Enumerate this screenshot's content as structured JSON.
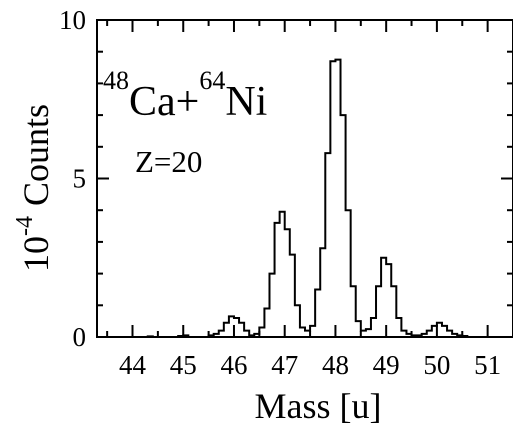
{
  "chart_data": {
    "type": "line",
    "step": true,
    "title": "",
    "xlabel": "Mass [u]",
    "ylabel": "Counts",
    "ylabel_exponent_base": "10",
    "ylabel_exponent": "-4",
    "xlim": [
      43.3,
      51.5
    ],
    "ylim": [
      0,
      10
    ],
    "x_ticks": [
      44,
      45,
      46,
      47,
      48,
      49,
      50,
      51
    ],
    "x_tick_labels": [
      "44",
      "45",
      "46",
      "47",
      "48",
      "49",
      "50",
      "51"
    ],
    "y_ticks": [
      0,
      5,
      10
    ],
    "y_tick_labels": [
      "0",
      "5",
      "10"
    ],
    "grid": false,
    "annotations": {
      "reaction": {
        "target_mass": "48",
        "target": "Ca+",
        "projectile_mass": "64",
        "projectile": "Ni"
      },
      "z_label": "Z=20"
    },
    "series": [
      {
        "bin_width": 0.1,
        "x": [
          43.35,
          43.45,
          43.55,
          43.65,
          43.75,
          43.85,
          43.95,
          44.05,
          44.15,
          44.25,
          44.35,
          44.45,
          44.55,
          44.65,
          44.75,
          44.85,
          44.95,
          45.05,
          45.15,
          45.25,
          45.35,
          45.45,
          45.55,
          45.65,
          45.75,
          45.85,
          45.95,
          46.05,
          46.15,
          46.25,
          46.35,
          46.45,
          46.55,
          46.65,
          46.75,
          46.85,
          46.95,
          47.05,
          47.15,
          47.25,
          47.35,
          47.45,
          47.55,
          47.65,
          47.75,
          47.85,
          47.95,
          48.05,
          48.15,
          48.25,
          48.35,
          48.45,
          48.55,
          48.65,
          48.75,
          48.85,
          48.95,
          49.05,
          49.15,
          49.25,
          49.35,
          49.45,
          49.55,
          49.65,
          49.75,
          49.85,
          49.95,
          50.05,
          50.15,
          50.25,
          50.35,
          50.45,
          50.55,
          50.65,
          50.75,
          50.85,
          50.95,
          51.05,
          51.15,
          51.25,
          51.35,
          51.45
        ],
        "y": [
          0,
          0,
          0,
          0,
          0,
          0,
          0,
          0,
          0,
          0,
          0.02,
          0,
          0,
          0,
          0,
          0,
          0.03,
          0.05,
          0,
          0,
          0,
          0,
          0.05,
          0.1,
          0.2,
          0.45,
          0.65,
          0.6,
          0.45,
          0.2,
          0.05,
          0.1,
          0.3,
          0.9,
          2.0,
          3.6,
          3.95,
          3.4,
          2.6,
          1.0,
          0.3,
          0.2,
          0.35,
          1.5,
          2.8,
          5.8,
          8.7,
          8.75,
          7.0,
          4.0,
          1.6,
          0.5,
          0.2,
          0.25,
          0.6,
          1.6,
          2.5,
          2.3,
          1.6,
          0.6,
          0.2,
          0.1,
          0.05,
          0.05,
          0.1,
          0.2,
          0.35,
          0.45,
          0.35,
          0.2,
          0.1,
          0.05,
          0.03,
          0,
          0,
          0,
          0,
          0,
          0,
          0,
          0,
          0
        ]
      }
    ]
  }
}
